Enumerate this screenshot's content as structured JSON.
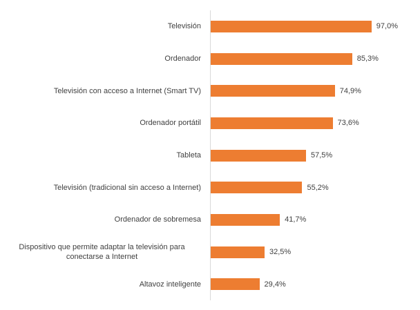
{
  "chart_data": {
    "type": "bar",
    "orientation": "horizontal",
    "title": "",
    "xlabel": "",
    "ylabel": "",
    "xlim": [
      0,
      100
    ],
    "grid": false,
    "legend": false,
    "categories": [
      "Televisión",
      "Ordenador",
      "Televisión con acceso a Internet (Smart TV)",
      "Ordenador portátil",
      "Tableta",
      "Televisión (tradicional sin acceso a Internet)",
      "Ordenador de sobremesa",
      "Dispositivo que permite adaptar la televisión para conectarse a Internet",
      "Altavoz inteligente"
    ],
    "values": [
      97.0,
      85.3,
      74.9,
      73.6,
      57.5,
      55.2,
      41.7,
      32.5,
      29.4
    ],
    "value_labels": [
      "97,0%",
      "85,3%",
      "74,9%",
      "73,6%",
      "57,5%",
      "55,2%",
      "41,7%",
      "32,5%",
      "29,4%"
    ],
    "colors": {
      "bar": "#ED7D31",
      "axis_line": "#D9D9D9",
      "text": "#404040",
      "background": "#FFFFFF"
    }
  }
}
